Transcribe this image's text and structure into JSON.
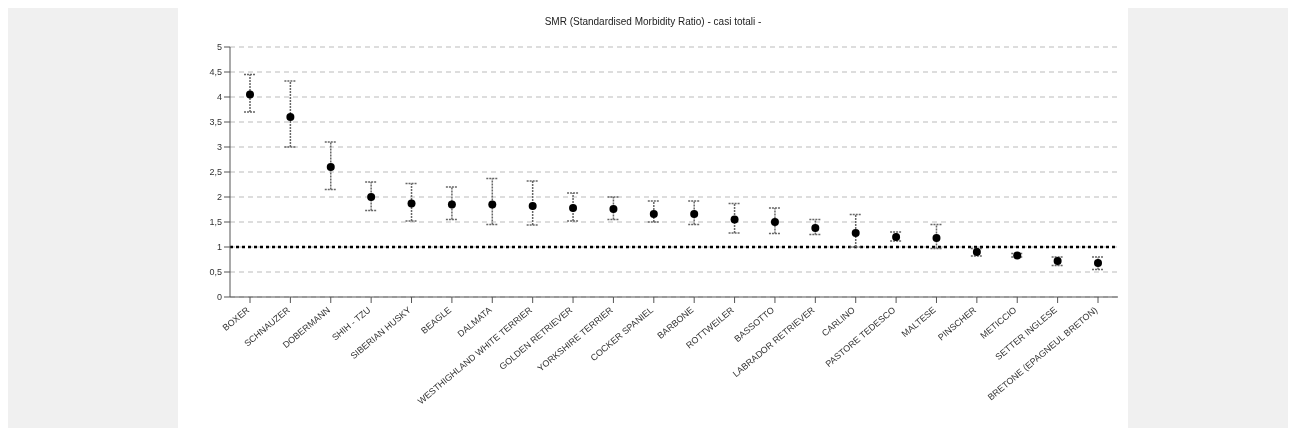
{
  "chart_data": {
    "type": "scatter",
    "title": "SMR (Standardised Morbidity Ratio) - casi totali -",
    "categories": [
      "BOXER",
      "SCHNAUZER",
      "DOBERMANN",
      "SHIH - TZU",
      "SIBERIAN HUSKY",
      "BEAGLE",
      "DALMATA",
      "WESTHIGHLAND WHITE TERRIER",
      "GOLDEN RETRIEVER",
      "YORKSHIRE TERRIER",
      "COCKER SPANIEL",
      "BARBONE",
      "ROTTWEILER",
      "BASSOTTO",
      "LABRADOR RETRIEVER",
      "CARLINO",
      "PASTORE TEDESCO",
      "MALTESE",
      "PINSCHER",
      "METICCIO",
      "SETTER INGLESE",
      "BRETONE (EPAGNEUL BRETON)"
    ],
    "series": [
      {
        "color": "#000000",
        "values": [
          4.05,
          3.6,
          2.6,
          2.0,
          1.87,
          1.85,
          1.85,
          1.82,
          1.78,
          1.76,
          1.66,
          1.66,
          1.55,
          1.5,
          1.38,
          1.28,
          1.2,
          1.18,
          0.9,
          0.83,
          0.72,
          0.68
        ],
        "errors": [
          [
            3.7,
            4.45
          ],
          [
            3.0,
            4.32
          ],
          [
            2.15,
            3.1
          ],
          [
            1.73,
            2.3
          ],
          [
            1.52,
            2.27
          ],
          [
            1.55,
            2.2
          ],
          [
            1.45,
            2.37
          ],
          [
            1.44,
            2.32
          ],
          [
            1.52,
            2.08
          ],
          [
            1.55,
            2.0
          ],
          [
            1.5,
            1.92
          ],
          [
            1.45,
            1.92
          ],
          [
            1.28,
            1.87
          ],
          [
            1.27,
            1.78
          ],
          [
            1.25,
            1.55
          ],
          [
            1.0,
            1.65
          ],
          [
            1.12,
            1.3
          ],
          [
            0.97,
            1.45
          ],
          [
            0.82,
            0.97
          ],
          [
            0.8,
            0.87
          ],
          [
            0.63,
            0.8
          ],
          [
            0.55,
            0.8
          ]
        ]
      }
    ],
    "ylim": [
      0,
      5
    ],
    "yticks": [
      0,
      {
        "value": 0.5,
        "label": "0,5"
      },
      1,
      {
        "value": 1.5,
        "label": "1,5"
      },
      2,
      {
        "value": 2.5,
        "label": "2,5"
      },
      3,
      {
        "value": 3.5,
        "label": "3,5"
      },
      4,
      {
        "value": 4.5,
        "label": "4,5"
      },
      5
    ],
    "grid": "y",
    "marker": "circle",
    "ref_lines": [
      {
        "axis": "y",
        "value": 1,
        "color": "#000000",
        "line_style": "dotted"
      }
    ]
  }
}
